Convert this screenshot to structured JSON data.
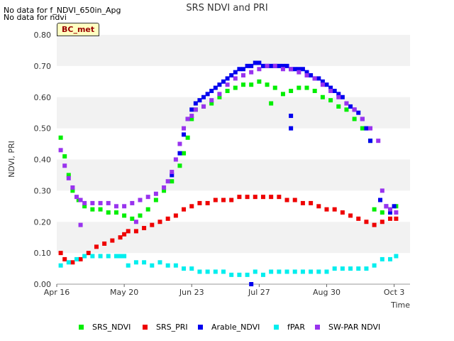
{
  "notes": [
    "No data for f_NDVI_650in_Apg",
    "No data for ndvi"
  ],
  "badge": "BC_met",
  "chart_data": {
    "type": "scatter",
    "title": "SRS NDVI and PRI",
    "xlabel": "Time",
    "ylabel": "NDVI, PRI",
    "x_tick_labels": [
      "Apr 16",
      "May 20",
      "Jun 23",
      "Jul 27",
      "Aug 30",
      "Oct 3"
    ],
    "x_tick_days": [
      0,
      34,
      68,
      102,
      136,
      170
    ],
    "xlim": [
      0,
      178
    ],
    "ylim": [
      0,
      0.8
    ],
    "y_tick_labels": [
      "0.00",
      "0.10",
      "0.20",
      "0.30",
      "0.40",
      "0.50",
      "0.60",
      "0.70",
      "0.80"
    ],
    "grid": "alternating-bands",
    "legend_position": "bottom",
    "series": [
      {
        "name": "SRS_NDVI",
        "color": "#00ee00",
        "x": [
          2,
          4,
          6,
          8,
          11,
          14,
          18,
          22,
          26,
          30,
          34,
          38,
          42,
          46,
          50,
          54,
          58,
          62,
          64,
          66,
          68,
          70,
          74,
          78,
          82,
          86,
          90,
          94,
          98,
          102,
          106,
          108,
          110,
          114,
          118,
          122,
          126,
          130,
          134,
          138,
          142,
          146,
          150,
          154,
          158,
          160,
          164,
          168,
          171
        ],
        "y": [
          0.47,
          0.41,
          0.35,
          0.3,
          0.27,
          0.25,
          0.24,
          0.24,
          0.23,
          0.23,
          0.22,
          0.21,
          0.22,
          0.24,
          0.27,
          0.3,
          0.33,
          0.38,
          0.42,
          0.47,
          0.53,
          0.56,
          0.57,
          0.58,
          0.6,
          0.62,
          0.63,
          0.64,
          0.64,
          0.65,
          0.64,
          0.58,
          0.63,
          0.61,
          0.62,
          0.63,
          0.63,
          0.62,
          0.6,
          0.59,
          0.57,
          0.56,
          0.53,
          0.5,
          0.46,
          0.24,
          0.23,
          0.24,
          0.25
        ]
      },
      {
        "name": "SRS_PRI",
        "color": "#ee0000",
        "x": [
          2,
          4,
          8,
          12,
          16,
          20,
          24,
          28,
          32,
          34,
          36,
          40,
          44,
          48,
          52,
          56,
          60,
          64,
          68,
          72,
          76,
          80,
          84,
          88,
          92,
          96,
          100,
          104,
          108,
          112,
          116,
          120,
          124,
          128,
          132,
          136,
          140,
          144,
          148,
          152,
          156,
          160,
          164,
          168,
          171
        ],
        "y": [
          0.1,
          0.08,
          0.07,
          0.08,
          0.1,
          0.12,
          0.13,
          0.14,
          0.15,
          0.16,
          0.17,
          0.17,
          0.18,
          0.19,
          0.2,
          0.21,
          0.22,
          0.24,
          0.25,
          0.26,
          0.26,
          0.27,
          0.27,
          0.27,
          0.28,
          0.28,
          0.28,
          0.28,
          0.28,
          0.28,
          0.27,
          0.27,
          0.26,
          0.26,
          0.25,
          0.24,
          0.24,
          0.23,
          0.22,
          0.21,
          0.2,
          0.19,
          0.2,
          0.21,
          0.21
        ]
      },
      {
        "name": "Arable_NDVI",
        "color": "#0000ee",
        "x": [
          58,
          62,
          64,
          66,
          68,
          70,
          72,
          74,
          76,
          78,
          80,
          82,
          84,
          86,
          88,
          90,
          92,
          94,
          96,
          98,
          100,
          102,
          104,
          106,
          108,
          110,
          112,
          114,
          116,
          118,
          120,
          122,
          124,
          126,
          128,
          130,
          132,
          134,
          136,
          138,
          140,
          142,
          144,
          146,
          148,
          150,
          152,
          154,
          156,
          158,
          163,
          166,
          168,
          170,
          98,
          118,
          118
        ],
        "y": [
          0.35,
          0.42,
          0.48,
          0.53,
          0.56,
          0.58,
          0.59,
          0.6,
          0.61,
          0.62,
          0.63,
          0.64,
          0.65,
          0.66,
          0.67,
          0.68,
          0.69,
          0.69,
          0.7,
          0.7,
          0.71,
          0.71,
          0.7,
          0.7,
          0.7,
          0.7,
          0.7,
          0.7,
          0.7,
          0.69,
          0.69,
          0.69,
          0.69,
          0.68,
          0.67,
          0.66,
          0.66,
          0.65,
          0.64,
          0.63,
          0.62,
          0.61,
          0.6,
          0.58,
          0.57,
          0.56,
          0.55,
          0.53,
          0.5,
          0.46,
          0.27,
          0.25,
          0.23,
          0.25,
          0.0,
          0.5,
          0.54
        ]
      },
      {
        "name": "fPAR",
        "color": "#00eeee",
        "x": [
          2,
          6,
          10,
          14,
          18,
          22,
          26,
          30,
          32,
          34,
          36,
          40,
          44,
          48,
          52,
          56,
          60,
          64,
          68,
          72,
          76,
          80,
          84,
          88,
          92,
          96,
          100,
          104,
          108,
          112,
          116,
          120,
          124,
          128,
          132,
          136,
          140,
          144,
          148,
          152,
          156,
          160,
          164,
          168,
          171
        ],
        "y": [
          0.06,
          0.07,
          0.08,
          0.09,
          0.09,
          0.09,
          0.09,
          0.09,
          0.09,
          0.09,
          0.06,
          0.07,
          0.07,
          0.06,
          0.07,
          0.06,
          0.06,
          0.05,
          0.05,
          0.04,
          0.04,
          0.04,
          0.04,
          0.03,
          0.03,
          0.03,
          0.04,
          0.03,
          0.04,
          0.04,
          0.04,
          0.04,
          0.04,
          0.04,
          0.04,
          0.04,
          0.05,
          0.05,
          0.05,
          0.05,
          0.05,
          0.06,
          0.08,
          0.08,
          0.09
        ]
      },
      {
        "name": "SW-PAR NDVI",
        "color": "#9933ee",
        "x": [
          2,
          4,
          6,
          8,
          10,
          12,
          14,
          18,
          22,
          26,
          30,
          34,
          38,
          42,
          46,
          50,
          54,
          56,
          58,
          60,
          62,
          64,
          66,
          68,
          70,
          74,
          78,
          82,
          86,
          90,
          94,
          98,
          102,
          106,
          110,
          114,
          118,
          122,
          126,
          130,
          134,
          138,
          142,
          146,
          150,
          154,
          158,
          162,
          164,
          166,
          168,
          171,
          12,
          40
        ],
        "y": [
          0.43,
          0.38,
          0.34,
          0.31,
          0.28,
          0.27,
          0.26,
          0.26,
          0.26,
          0.26,
          0.25,
          0.25,
          0.26,
          0.27,
          0.28,
          0.29,
          0.31,
          0.33,
          0.36,
          0.4,
          0.45,
          0.5,
          0.53,
          0.54,
          0.56,
          0.57,
          0.59,
          0.61,
          0.64,
          0.66,
          0.67,
          0.68,
          0.69,
          0.7,
          0.7,
          0.69,
          0.69,
          0.68,
          0.67,
          0.66,
          0.64,
          0.62,
          0.6,
          0.58,
          0.56,
          0.53,
          0.5,
          0.46,
          0.3,
          0.25,
          0.24,
          0.23,
          0.19,
          0.2
        ]
      }
    ]
  }
}
